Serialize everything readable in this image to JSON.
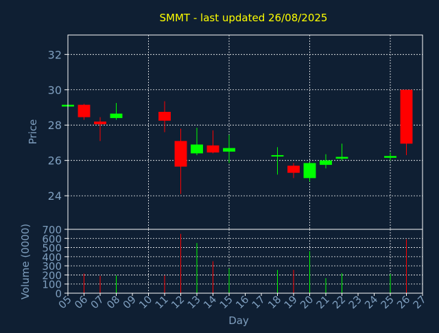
{
  "colors": {
    "background": "#0f1f33",
    "title": "#ffff00",
    "axis_text": "#7f9fbf",
    "grid": "#ffffff",
    "frame": "#ffffff",
    "up": "#00ff00",
    "down": "#ff0000"
  },
  "chart_data": [
    {
      "type": "candlestick",
      "title": "SMMT - last updated 26/08/2025",
      "ylabel": "Price",
      "ylim": [
        22.1,
        33.1
      ],
      "yticks": [
        24,
        26,
        28,
        30,
        32
      ],
      "grid": true,
      "candles": [
        {
          "day": "05",
          "open": 29.05,
          "high": 29.15,
          "low": 29.05,
          "close": 29.15
        },
        {
          "day": "06",
          "open": 29.15,
          "high": 29.2,
          "low": 28.3,
          "close": 28.45
        },
        {
          "day": "07",
          "open": 28.2,
          "high": 28.45,
          "low": 27.1,
          "close": 28.05
        },
        {
          "day": "08",
          "open": 28.4,
          "high": 29.25,
          "low": 28.3,
          "close": 28.65
        },
        {
          "day": "11",
          "open": 28.75,
          "high": 29.35,
          "low": 27.6,
          "close": 28.25
        },
        {
          "day": "12",
          "open": 27.1,
          "high": 27.8,
          "low": 24.1,
          "close": 25.65
        },
        {
          "day": "13",
          "open": 26.4,
          "high": 27.85,
          "low": 26.3,
          "close": 26.9
        },
        {
          "day": "14",
          "open": 26.85,
          "high": 27.7,
          "low": 26.4,
          "close": 26.45
        },
        {
          "day": "15",
          "open": 26.5,
          "high": 27.45,
          "low": 25.85,
          "close": 26.7
        },
        {
          "day": "18",
          "open": 26.25,
          "high": 26.75,
          "low": 25.2,
          "close": 26.3
        },
        {
          "day": "19",
          "open": 25.7,
          "high": 25.85,
          "low": 25.0,
          "close": 25.3
        },
        {
          "day": "20",
          "open": 25.0,
          "high": 25.9,
          "low": 24.8,
          "close": 25.85
        },
        {
          "day": "21",
          "open": 25.75,
          "high": 26.35,
          "low": 25.55,
          "close": 26.0
        },
        {
          "day": "22",
          "open": 26.1,
          "high": 26.95,
          "low": 26.0,
          "close": 26.2
        },
        {
          "day": "25",
          "open": 26.15,
          "high": 26.45,
          "low": 26.0,
          "close": 26.25
        },
        {
          "day": "26",
          "open": 30.0,
          "high": 30.0,
          "low": 26.3,
          "close": 26.95
        }
      ]
    },
    {
      "type": "bar",
      "ylabel": "Volume (0000)",
      "xlabel": "Day",
      "ylim": [
        0,
        700
      ],
      "yticks": [
        0,
        100,
        200,
        300,
        400,
        500,
        600,
        700
      ],
      "grid": true,
      "categories": [
        "05",
        "06",
        "07",
        "08",
        "09",
        "10",
        "11",
        "12",
        "13",
        "14",
        "15",
        "16",
        "17",
        "18",
        "19",
        "20",
        "21",
        "22",
        "23",
        "24",
        "25",
        "26",
        "27"
      ],
      "values": [
        5,
        215,
        190,
        195,
        0,
        0,
        195,
        650,
        550,
        350,
        270,
        0,
        0,
        255,
        255,
        460,
        165,
        220,
        0,
        0,
        210,
        590,
        0
      ],
      "directions": [
        "up",
        "down",
        "down",
        "up",
        "",
        "",
        "down",
        "down",
        "up",
        "down",
        "up",
        "",
        "",
        "up",
        "down",
        "up",
        "up",
        "up",
        "",
        "",
        "up",
        "down",
        ""
      ]
    }
  ]
}
